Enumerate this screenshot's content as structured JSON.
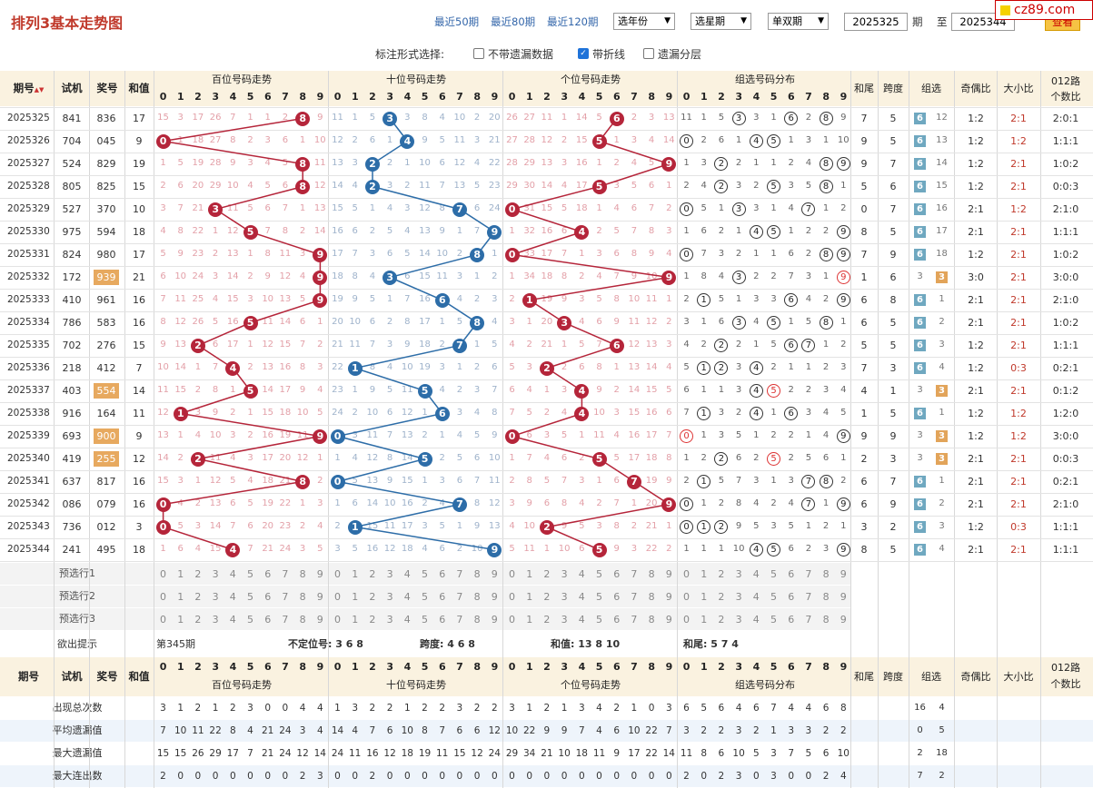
{
  "site": {
    "title": "排列3基本走势图",
    "links": [
      "最近50期",
      "最近80期",
      "最近120期"
    ],
    "selects": [
      "选年份",
      "选星期",
      "单双期"
    ],
    "from": "2025325",
    "to": "2025344",
    "label_qi": "期",
    "label_zhi": "至",
    "query": "查看",
    "logo": "cz89.com"
  },
  "options": {
    "label": "标注形式选择:",
    "items": [
      {
        "text": "不带遗漏数据",
        "checked": false
      },
      {
        "text": "带折线",
        "checked": true
      },
      {
        "text": "遗漏分层",
        "checked": false
      }
    ]
  },
  "headers": {
    "issue": "期号",
    "trial": "试机",
    "prize": "奖号",
    "sum": "和值",
    "bai": "百位号码走势",
    "shi": "十位号码走势",
    "ge": "个位号码走势",
    "group": "组选号码分布",
    "tail": "和尾",
    "span": "跨度",
    "zuxuan": "组选",
    "oe": "奇偶比",
    "bs": "大小比",
    "road1": "012路",
    "road2": "个数比"
  },
  "digits": [
    "0",
    "1",
    "2",
    "3",
    "4",
    "5",
    "6",
    "7",
    "8",
    "9"
  ],
  "colors": {
    "bai": "#b5253a",
    "shi": "#2d6da8",
    "ge": "#b5253a",
    "tag6": "#6fa8c0",
    "tag3": "#e2a45a"
  },
  "rows": [
    {
      "issue": "2025325",
      "trial": "841",
      "prize": "836",
      "sum": "17",
      "b": [
        15,
        3,
        17,
        26,
        7,
        1,
        1,
        2,
        -8,
        9
      ],
      "s": [
        11,
        1,
        5,
        -3,
        3,
        8,
        4,
        10,
        2,
        20
      ],
      "g": [
        26,
        27,
        11,
        1,
        14,
        5,
        -6,
        2,
        3,
        13
      ],
      "grp": [
        11,
        1,
        5,
        "c3",
        3,
        1,
        "c6",
        2,
        "c8",
        9
      ],
      "tail": "7",
      "span": "5",
      "zx": "6",
      "zxv": "12",
      "oe": "1:2",
      "bs": "2:1",
      "road": "2:0:1"
    },
    {
      "issue": "2025326",
      "trial": "704",
      "prize": "045",
      "sum": "9",
      "b": [
        0,
        1,
        18,
        27,
        8,
        2,
        3,
        6,
        1,
        10
      ],
      "s": [
        12,
        2,
        6,
        1,
        -4,
        9,
        5,
        11,
        3,
        21
      ],
      "g": [
        27,
        28,
        12,
        2,
        15,
        -5,
        1,
        3,
        4,
        14
      ],
      "grp": [
        "c0",
        2,
        6,
        1,
        "c4",
        "c5",
        1,
        3,
        1,
        10
      ],
      "tail": "9",
      "span": "5",
      "zx": "6",
      "zxv": "13",
      "oe": "1:2",
      "bs": "1:2",
      "road": "1:1:1"
    },
    {
      "issue": "2025327",
      "trial": "524",
      "prize": "829",
      "sum": "19",
      "b": [
        1,
        5,
        19,
        28,
        9,
        3,
        4,
        5,
        -8,
        11
      ],
      "s": [
        13,
        3,
        -2,
        2,
        1,
        10,
        6,
        12,
        4,
        22
      ],
      "g": [
        28,
        29,
        13,
        3,
        16,
        1,
        2,
        4,
        5,
        -9
      ],
      "grp": [
        1,
        3,
        "c2",
        2,
        1,
        1,
        2,
        4,
        "c8",
        "c9"
      ],
      "tail": "9",
      "span": "7",
      "zx": "6",
      "zxv": "14",
      "oe": "1:2",
      "bs": "2:1",
      "road": "1:0:2"
    },
    {
      "issue": "2025328",
      "trial": "805",
      "prize": "825",
      "sum": "15",
      "b": [
        2,
        6,
        20,
        29,
        10,
        4,
        5,
        6,
        -8,
        12
      ],
      "s": [
        14,
        4,
        -2,
        3,
        2,
        11,
        7,
        13,
        5,
        23
      ],
      "g": [
        29,
        30,
        14,
        4,
        17,
        -5,
        3,
        5,
        6,
        1
      ],
      "grp": [
        2,
        4,
        "c2",
        3,
        2,
        "c5",
        3,
        5,
        "c8",
        1
      ],
      "tail": "5",
      "span": "6",
      "zx": "6",
      "zxv": "15",
      "oe": "1:2",
      "bs": "2:1",
      "road": "0:0:3"
    },
    {
      "issue": "2025329",
      "trial": "527",
      "prize": "370",
      "sum": "10",
      "b": [
        3,
        7,
        21,
        -3,
        11,
        5,
        6,
        7,
        1,
        13
      ],
      "s": [
        15,
        5,
        1,
        4,
        3,
        12,
        8,
        -7,
        6,
        24
      ],
      "g": [
        0,
        31,
        15,
        5,
        18,
        1,
        4,
        6,
        7,
        2
      ],
      "grp": [
        "c0",
        5,
        1,
        "c3",
        3,
        1,
        4,
        "c7",
        1,
        2
      ],
      "tail": "0",
      "span": "7",
      "zx": "6",
      "zxv": "16",
      "oe": "2:1",
      "bs": "1:2",
      "road": "2:1:0"
    },
    {
      "issue": "2025330",
      "trial": "975",
      "prize": "594",
      "sum": "18",
      "b": [
        4,
        8,
        22,
        1,
        12,
        -5,
        7,
        8,
        2,
        14
      ],
      "s": [
        16,
        6,
        2,
        5,
        4,
        13,
        9,
        1,
        7,
        -9
      ],
      "g": [
        1,
        32,
        16,
        6,
        -4,
        2,
        5,
        7,
        8,
        3
      ],
      "grp": [
        1,
        6,
        2,
        1,
        "c4",
        "c5",
        1,
        2,
        2,
        "c9"
      ],
      "tail": "8",
      "span": "5",
      "zx": "6",
      "zxv": "17",
      "oe": "2:1",
      "bs": "2:1",
      "road": "1:1:1"
    },
    {
      "issue": "2025331",
      "trial": "824",
      "prize": "980",
      "sum": "17",
      "b": [
        5,
        9,
        23,
        2,
        13,
        1,
        8,
        11,
        3,
        -9
      ],
      "s": [
        17,
        7,
        3,
        6,
        5,
        14,
        10,
        2,
        -8,
        1
      ],
      "g": [
        0,
        33,
        17,
        7,
        1,
        3,
        6,
        8,
        9,
        4
      ],
      "grp": [
        "c0",
        7,
        3,
        2,
        1,
        1,
        6,
        2,
        "c8",
        "c9"
      ],
      "tail": "7",
      "span": "9",
      "zx": "6",
      "zxv": "18",
      "oe": "1:2",
      "bs": "2:1",
      "road": "1:0:2"
    },
    {
      "issue": "2025332",
      "trial": "172",
      "prize": "939",
      "sum": "21",
      "b": [
        6,
        10,
        24,
        3,
        14,
        2,
        9,
        12,
        4,
        -9
      ],
      "s": [
        18,
        8,
        4,
        -3,
        6,
        15,
        11,
        3,
        1,
        2
      ],
      "g": [
        1,
        34,
        18,
        8,
        2,
        4,
        7,
        9,
        10,
        -9
      ],
      "grp": [
        1,
        8,
        4,
        "c3",
        2,
        2,
        7,
        3,
        1,
        "r9"
      ],
      "tail": "1",
      "span": "6",
      "zx": "1",
      "zxv": "3",
      "oe": "3:0",
      "bs": "2:1",
      "road": "3:0:0"
    },
    {
      "issue": "2025333",
      "trial": "410",
      "prize": "961",
      "sum": "16",
      "b": [
        7,
        11,
        25,
        4,
        15,
        3,
        10,
        13,
        5,
        -9
      ],
      "s": [
        19,
        9,
        5,
        1,
        7,
        16,
        -6,
        4,
        2,
        3
      ],
      "g": [
        2,
        -1,
        19,
        9,
        3,
        5,
        8,
        10,
        11,
        1
      ],
      "grp": [
        2,
        "c1",
        5,
        1,
        3,
        3,
        "c6",
        4,
        2,
        "c9"
      ],
      "tail": "6",
      "span": "8",
      "zx": "6",
      "zxv": "1",
      "oe": "2:1",
      "bs": "2:1",
      "road": "2:1:0"
    },
    {
      "issue": "2025334",
      "trial": "786",
      "prize": "583",
      "sum": "16",
      "b": [
        8,
        12,
        26,
        5,
        16,
        -5,
        11,
        14,
        6,
        1
      ],
      "s": [
        20,
        10,
        6,
        2,
        8,
        17,
        1,
        5,
        -8,
        4
      ],
      "g": [
        3,
        1,
        20,
        -3,
        4,
        6,
        9,
        11,
        12,
        2
      ],
      "grp": [
        3,
        1,
        6,
        "c3",
        4,
        "c5",
        1,
        5,
        "c8",
        1
      ],
      "tail": "6",
      "span": "5",
      "zx": "6",
      "zxv": "2",
      "oe": "2:1",
      "bs": "2:1",
      "road": "1:0:2"
    },
    {
      "issue": "2025335",
      "trial": "702",
      "prize": "276",
      "sum": "15",
      "b": [
        9,
        13,
        -2,
        6,
        17,
        1,
        12,
        15,
        7,
        2
      ],
      "s": [
        21,
        11,
        7,
        3,
        9,
        18,
        2,
        -7,
        1,
        5
      ],
      "g": [
        4,
        2,
        21,
        1,
        5,
        7,
        -6,
        12,
        13,
        3
      ],
      "grp": [
        4,
        2,
        "c2",
        2,
        1,
        5,
        "c6",
        "c7",
        1,
        2
      ],
      "tail": "5",
      "span": "5",
      "zx": "6",
      "zxv": "3",
      "oe": "1:2",
      "bs": "2:1",
      "road": "1:1:1"
    },
    {
      "issue": "2025336",
      "trial": "218",
      "prize": "412",
      "sum": "7",
      "b": [
        10,
        14,
        1,
        7,
        -4,
        2,
        13,
        16,
        8,
        3
      ],
      "s": [
        22,
        -1,
        8,
        4,
        10,
        19,
        3,
        1,
        2,
        6
      ],
      "g": [
        5,
        3,
        -2,
        2,
        6,
        8,
        1,
        13,
        14,
        4
      ],
      "grp": [
        5,
        "c1",
        "c2",
        3,
        "c4",
        2,
        1,
        1,
        2,
        3
      ],
      "tail": "7",
      "span": "3",
      "zx": "6",
      "zxv": "4",
      "oe": "1:2",
      "bs": "0:3",
      "road": "0:2:1"
    },
    {
      "issue": "2025337",
      "trial": "403",
      "prize": "554",
      "sum": "14",
      "b": [
        11,
        15,
        2,
        8,
        1,
        -5,
        14,
        17,
        9,
        4
      ],
      "s": [
        23,
        1,
        9,
        5,
        11,
        -5,
        4,
        2,
        3,
        7
      ],
      "g": [
        6,
        4,
        1,
        3,
        -4,
        9,
        2,
        14,
        15,
        5
      ],
      "grp": [
        6,
        1,
        1,
        3,
        "c4",
        "r5",
        2,
        2,
        3,
        4
      ],
      "tail": "4",
      "span": "1",
      "zx": "1",
      "zxv": "3",
      "oe": "2:1",
      "bs": "2:1",
      "road": "0:1:2"
    },
    {
      "issue": "2025338",
      "trial": "916",
      "prize": "164",
      "sum": "11",
      "b": [
        12,
        -1,
        3,
        9,
        2,
        1,
        15,
        18,
        10,
        5
      ],
      "s": [
        24,
        2,
        10,
        6,
        12,
        1,
        -6,
        3,
        4,
        8
      ],
      "g": [
        7,
        5,
        2,
        4,
        -4,
        10,
        3,
        15,
        16,
        6
      ],
      "grp": [
        7,
        "c1",
        3,
        2,
        "c4",
        1,
        "c6",
        3,
        4,
        5
      ],
      "tail": "1",
      "span": "5",
      "zx": "6",
      "zxv": "1",
      "oe": "1:2",
      "bs": "1:2",
      "road": "1:2:0"
    },
    {
      "issue": "2025339",
      "trial": "693",
      "prize": "900",
      "sum": "9",
      "b": [
        13,
        1,
        4,
        10,
        3,
        2,
        16,
        19,
        11,
        -9
      ],
      "s": [
        0,
        3,
        11,
        7,
        13,
        2,
        1,
        4,
        5,
        9
      ],
      "g": [
        0,
        6,
        3,
        5,
        1,
        11,
        4,
        16,
        17,
        7
      ],
      "grp": [
        "r0",
        1,
        3,
        5,
        1,
        2,
        2,
        1,
        4,
        "c9"
      ],
      "tail": "9",
      "span": "9",
      "zx": "1",
      "zxv": "3",
      "oe": "1:2",
      "bs": "1:2",
      "road": "3:0:0"
    },
    {
      "issue": "2025340",
      "trial": "419",
      "prize": "255",
      "sum": "12",
      "b": [
        14,
        2,
        -2,
        11,
        4,
        3,
        17,
        20,
        12,
        1
      ],
      "s": [
        1,
        4,
        12,
        8,
        14,
        -5,
        2,
        5,
        6,
        10
      ],
      "g": [
        1,
        7,
        4,
        6,
        2,
        -5,
        5,
        17,
        18,
        8
      ],
      "grp": [
        1,
        2,
        "c2",
        6,
        2,
        "r5",
        2,
        5,
        6,
        1
      ],
      "tail": "2",
      "span": "3",
      "zx": "2",
      "zxv": "3",
      "oe": "2:1",
      "bs": "2:1",
      "road": "0:0:3"
    },
    {
      "issue": "2025341",
      "trial": "637",
      "prize": "817",
      "sum": "16",
      "b": [
        15,
        3,
        1,
        12,
        5,
        4,
        18,
        21,
        -8,
        2
      ],
      "s": [
        -1,
        5,
        13,
        9,
        15,
        1,
        3,
        6,
        7,
        11
      ],
      "g": [
        2,
        8,
        5,
        7,
        3,
        1,
        6,
        -7,
        19,
        9
      ],
      "grp": [
        2,
        "c1",
        5,
        7,
        3,
        1,
        3,
        "c7",
        "c8",
        2
      ],
      "tail": "6",
      "span": "7",
      "zx": "6",
      "zxv": "1",
      "oe": "2:1",
      "bs": "2:1",
      "road": "0:2:1"
    },
    {
      "issue": "2025342",
      "trial": "086",
      "prize": "079",
      "sum": "16",
      "b": [
        0,
        4,
        2,
        13,
        6,
        5,
        19,
        22,
        1,
        3
      ],
      "s": [
        1,
        6,
        14,
        10,
        16,
        2,
        4,
        -7,
        8,
        12
      ],
      "g": [
        3,
        9,
        6,
        8,
        4,
        2,
        7,
        1,
        20,
        -9
      ],
      "grp": [
        "c0",
        1,
        2,
        8,
        4,
        2,
        4,
        "c7",
        1,
        "c9"
      ],
      "tail": "6",
      "span": "9",
      "zx": "6",
      "zxv": "2",
      "oe": "2:1",
      "bs": "2:1",
      "road": "2:1:0"
    },
    {
      "issue": "2025343",
      "trial": "736",
      "prize": "012",
      "sum": "3",
      "b": [
        0,
        5,
        3,
        14,
        7,
        6,
        20,
        23,
        2,
        4
      ],
      "s": [
        2,
        -1,
        15,
        11,
        17,
        3,
        5,
        1,
        9,
        13
      ],
      "g": [
        4,
        10,
        -2,
        9,
        5,
        3,
        8,
        2,
        21,
        1
      ],
      "grp": [
        "c0",
        "c1",
        "c2",
        9,
        5,
        3,
        5,
        1,
        2,
        1
      ],
      "tail": "3",
      "span": "2",
      "zx": "6",
      "zxv": "3",
      "oe": "1:2",
      "bs": "0:3",
      "road": "1:1:1"
    },
    {
      "issue": "2025344",
      "trial": "241",
      "prize": "495",
      "sum": "18",
      "b": [
        1,
        6,
        4,
        15,
        -4,
        7,
        21,
        24,
        3,
        5
      ],
      "s": [
        3,
        5,
        16,
        12,
        18,
        4,
        6,
        2,
        10,
        -9
      ],
      "g": [
        5,
        11,
        1,
        10,
        6,
        -5,
        9,
        3,
        22,
        2
      ],
      "grp": [
        1,
        1,
        1,
        10,
        "c4",
        "c5",
        6,
        2,
        3,
        "c9"
      ],
      "tail": "8",
      "span": "5",
      "zx": "6",
      "zxv": "4",
      "oe": "2:1",
      "bs": "2:1",
      "road": "1:1:1"
    }
  ],
  "predict": [
    "预选行1",
    "预选行2",
    "预选行3"
  ],
  "hint": {
    "label": "欲出提示",
    "issue": "第345期",
    "pos": "不定位号: 3 6 8",
    "span": "跨度: 4 6 8",
    "sum": "和值: 13 8 10",
    "tail": "和尾: 5 7 4"
  },
  "stats": [
    {
      "label": "出现总次数",
      "bai": [
        3,
        1,
        2,
        1,
        2,
        3,
        0,
        0,
        4,
        4
      ],
      "shi": [
        1,
        3,
        2,
        2,
        1,
        2,
        2,
        3,
        2,
        2
      ],
      "ge": [
        3,
        1,
        2,
        1,
        3,
        4,
        2,
        1,
        0,
        3
      ],
      "grp": [
        6,
        5,
        6,
        4,
        6,
        7,
        4,
        4,
        6,
        8
      ],
      "zx": [
        "16",
        "4"
      ]
    },
    {
      "label": "平均遗漏值",
      "bai": [
        7,
        10,
        11,
        22,
        8,
        4,
        21,
        24,
        3,
        4
      ],
      "shi": [
        14,
        4,
        7,
        6,
        10,
        8,
        7,
        6,
        6,
        12
      ],
      "ge": [
        10,
        22,
        9,
        9,
        7,
        4,
        6,
        10,
        22,
        7
      ],
      "grp": [
        3,
        2,
        2,
        3,
        2,
        1,
        3,
        3,
        2,
        2
      ],
      "zx": [
        "0",
        "5"
      ]
    },
    {
      "label": "最大遗漏值",
      "bai": [
        15,
        15,
        26,
        29,
        17,
        7,
        21,
        24,
        12,
        14
      ],
      "shi": [
        24,
        11,
        16,
        12,
        18,
        19,
        11,
        15,
        12,
        24
      ],
      "ge": [
        29,
        34,
        21,
        10,
        18,
        11,
        9,
        17,
        22,
        14
      ],
      "grp": [
        11,
        8,
        6,
        10,
        5,
        3,
        7,
        5,
        6,
        10
      ],
      "zx": [
        "2",
        "18"
      ]
    },
    {
      "label": "最大连出数",
      "bai": [
        2,
        0,
        0,
        0,
        0,
        0,
        0,
        0,
        2,
        3
      ],
      "shi": [
        0,
        0,
        2,
        0,
        0,
        0,
        0,
        0,
        0,
        0
      ],
      "ge": [
        0,
        0,
        0,
        0,
        0,
        0,
        0,
        0,
        0,
        0
      ],
      "grp": [
        2,
        0,
        2,
        3,
        0,
        3,
        0,
        0,
        2,
        4
      ],
      "zx": [
        "7",
        "2"
      ]
    }
  ]
}
